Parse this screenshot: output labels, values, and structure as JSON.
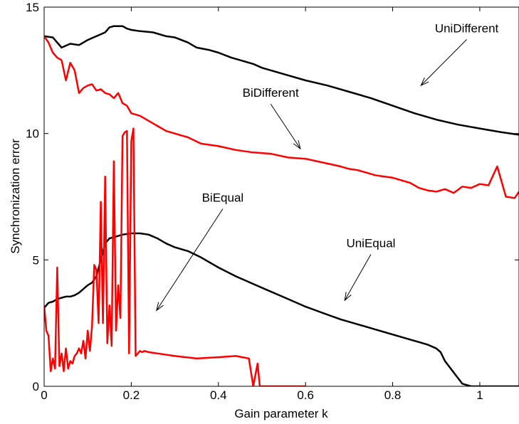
{
  "chart_data": {
    "type": "line",
    "title": "",
    "xlabel": "Gain parameter k",
    "ylabel": "Synchronization error",
    "xlim": [
      0,
      1.09
    ],
    "ylim": [
      0,
      15
    ],
    "x_ticks": [
      0,
      0.2,
      0.4,
      0.6,
      0.8,
      1
    ],
    "x_tick_labels": [
      "0",
      "0.2",
      "0.4",
      "0.6",
      "0.8",
      "1"
    ],
    "y_ticks": [
      0,
      5,
      10,
      15
    ],
    "y_tick_labels": [
      "0",
      "5",
      "10",
      "15"
    ],
    "grid": false,
    "legend": "none",
    "series": [
      {
        "name": "UniDifferent",
        "color": "#000000",
        "x": [
          0,
          0.02,
          0.04,
          0.06,
          0.08,
          0.1,
          0.12,
          0.14,
          0.15,
          0.16,
          0.18,
          0.19,
          0.2,
          0.22,
          0.25,
          0.28,
          0.3,
          0.33,
          0.35,
          0.38,
          0.4,
          0.43,
          0.45,
          0.48,
          0.5,
          0.55,
          0.6,
          0.65,
          0.7,
          0.75,
          0.8,
          0.85,
          0.9,
          0.95,
          1.0,
          1.05,
          1.09
        ],
        "values": [
          13.85,
          13.8,
          13.4,
          13.55,
          13.5,
          13.7,
          13.85,
          14.0,
          14.2,
          14.25,
          14.25,
          14.15,
          14.1,
          14.05,
          14.0,
          13.85,
          13.8,
          13.6,
          13.4,
          13.3,
          13.2,
          13.0,
          12.9,
          12.75,
          12.6,
          12.35,
          12.1,
          11.9,
          11.65,
          11.4,
          11.1,
          10.8,
          10.55,
          10.35,
          10.2,
          10.05,
          9.95
        ]
      },
      {
        "name": "BiDifferent",
        "color": "#ff0000",
        "x": [
          0,
          0.01,
          0.02,
          0.03,
          0.04,
          0.05,
          0.06,
          0.07,
          0.08,
          0.09,
          0.1,
          0.11,
          0.12,
          0.13,
          0.14,
          0.15,
          0.16,
          0.17,
          0.18,
          0.19,
          0.2,
          0.22,
          0.24,
          0.26,
          0.28,
          0.3,
          0.33,
          0.36,
          0.4,
          0.44,
          0.48,
          0.52,
          0.56,
          0.6,
          0.64,
          0.68,
          0.7,
          0.72,
          0.74,
          0.76,
          0.78,
          0.8,
          0.82,
          0.84,
          0.86,
          0.88,
          0.9,
          0.92,
          0.94,
          0.96,
          0.98,
          1.0,
          1.02,
          1.04,
          1.06,
          1.08,
          1.09
        ],
        "values": [
          13.85,
          13.6,
          13.2,
          13.0,
          12.9,
          12.1,
          12.8,
          12.5,
          11.6,
          11.8,
          11.9,
          11.95,
          11.7,
          11.75,
          11.6,
          11.55,
          11.4,
          11.6,
          11.2,
          11.1,
          10.8,
          10.7,
          10.5,
          10.3,
          10.1,
          10.0,
          9.85,
          9.6,
          9.5,
          9.35,
          9.25,
          9.2,
          9.05,
          9.0,
          8.85,
          8.7,
          8.6,
          8.55,
          8.45,
          8.35,
          8.3,
          8.25,
          8.15,
          8.05,
          7.85,
          7.75,
          7.7,
          7.8,
          7.65,
          7.9,
          7.85,
          8.0,
          7.95,
          8.7,
          7.5,
          7.45,
          7.7
        ]
      },
      {
        "name": "UniEqual",
        "color": "#000000",
        "x": [
          0,
          0.01,
          0.02,
          0.03,
          0.04,
          0.05,
          0.06,
          0.07,
          0.08,
          0.09,
          0.1,
          0.11,
          0.12,
          0.13,
          0.14,
          0.15,
          0.16,
          0.18,
          0.2,
          0.22,
          0.24,
          0.26,
          0.28,
          0.3,
          0.33,
          0.36,
          0.4,
          0.44,
          0.48,
          0.52,
          0.56,
          0.6,
          0.64,
          0.68,
          0.72,
          0.76,
          0.8,
          0.84,
          0.86,
          0.88,
          0.9,
          0.91,
          0.92,
          0.94,
          0.96,
          0.98,
          1.0,
          1.04,
          1.09
        ],
        "values": [
          3.1,
          3.3,
          3.35,
          3.45,
          3.5,
          3.55,
          3.55,
          3.6,
          3.7,
          3.85,
          4.0,
          4.1,
          4.35,
          5.0,
          5.65,
          5.85,
          5.9,
          6.0,
          6.05,
          6.05,
          6.0,
          5.85,
          5.65,
          5.5,
          5.35,
          5.1,
          4.7,
          4.35,
          4.05,
          3.75,
          3.45,
          3.15,
          2.9,
          2.65,
          2.45,
          2.25,
          2.05,
          1.85,
          1.75,
          1.65,
          1.5,
          1.35,
          1.0,
          0.55,
          0.1,
          0.0,
          0.0,
          0.0,
          0.0
        ]
      },
      {
        "name": "BiEqual",
        "color": "#ff0000",
        "x": [
          0,
          0.005,
          0.01,
          0.015,
          0.02,
          0.025,
          0.03,
          0.035,
          0.04,
          0.045,
          0.05,
          0.055,
          0.06,
          0.065,
          0.07,
          0.075,
          0.08,
          0.085,
          0.09,
          0.095,
          0.1,
          0.105,
          0.11,
          0.115,
          0.12,
          0.125,
          0.13,
          0.135,
          0.14,
          0.145,
          0.15,
          0.155,
          0.16,
          0.165,
          0.17,
          0.175,
          0.18,
          0.185,
          0.19,
          0.195,
          0.2,
          0.205,
          0.21,
          0.215,
          0.22,
          0.225,
          0.23,
          0.24,
          0.26,
          0.3,
          0.35,
          0.4,
          0.44,
          0.47,
          0.48,
          0.49,
          0.495,
          0.5,
          0.505,
          0.55,
          0.6
        ],
        "values": [
          3.2,
          2.2,
          2.0,
          0.6,
          1.1,
          0.7,
          4.7,
          0.8,
          1.3,
          0.6,
          1.5,
          0.7,
          1.0,
          0.9,
          1.2,
          1.3,
          1.5,
          1.3,
          1.8,
          1.1,
          2.2,
          1.4,
          2.4,
          4.8,
          4.6,
          2.5,
          7.3,
          2.5,
          8.3,
          1.7,
          3.2,
          1.6,
          8.9,
          2.2,
          4.0,
          2.7,
          9.9,
          10.05,
          10.1,
          1.3,
          9.7,
          10.2,
          1.2,
          1.3,
          1.4,
          1.35,
          1.4,
          1.35,
          1.3,
          1.2,
          1.1,
          1.15,
          1.2,
          1.1,
          0.0,
          0.9,
          0.0,
          0.0,
          0.0,
          0.0,
          0.0
        ]
      }
    ],
    "annotations": [
      {
        "text": "UniDifferent",
        "x": 0.97,
        "y": 14.0,
        "arrow_to": [
          0.865,
          11.9
        ]
      },
      {
        "text": "BiDifferent",
        "x": 0.52,
        "y": 11.45,
        "arrow_to": [
          0.588,
          9.4
        ]
      },
      {
        "text": "BiEqual",
        "x": 0.41,
        "y": 7.3,
        "arrow_to": [
          0.258,
          3.0
        ]
      },
      {
        "text": "UniEqual",
        "x": 0.75,
        "y": 5.5,
        "arrow_to": [
          0.69,
          3.4
        ]
      }
    ]
  }
}
